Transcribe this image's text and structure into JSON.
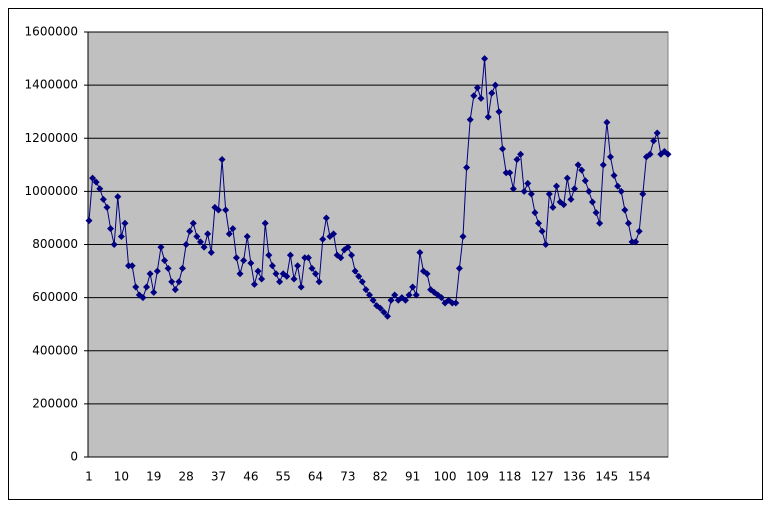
{
  "chart_data": {
    "type": "line",
    "color": "#000080",
    "plot_background": "#c0c0c0",
    "grid": true,
    "ylim": [
      0,
      1600000
    ],
    "yticks": [
      0,
      200000,
      400000,
      600000,
      800000,
      1000000,
      1200000,
      1400000,
      1600000
    ],
    "categories": [
      1,
      null,
      null,
      null,
      null,
      null,
      null,
      null,
      null,
      10,
      null,
      null,
      null,
      null,
      null,
      null,
      null,
      null,
      19,
      null,
      null,
      null,
      null,
      null,
      null,
      null,
      null,
      28,
      null,
      null,
      null,
      null,
      null,
      null,
      null,
      null,
      37,
      null,
      null,
      null,
      null,
      null,
      null,
      null,
      null,
      46,
      null,
      null,
      null,
      null,
      null,
      null,
      null,
      null,
      55,
      null,
      null,
      null,
      null,
      null,
      null,
      null,
      null,
      64,
      null,
      null,
      null,
      null,
      null,
      null,
      null,
      null,
      73,
      null,
      null,
      null,
      null,
      null,
      null,
      null,
      null,
      82,
      null,
      null,
      null,
      null,
      null,
      null,
      null,
      null,
      91,
      null,
      null,
      null,
      null,
      null,
      null,
      null,
      null,
      100,
      null,
      null,
      null,
      null,
      null,
      null,
      null,
      null,
      109,
      null,
      null,
      null,
      null,
      null,
      null,
      null,
      null,
      118,
      null,
      null,
      null,
      null,
      null,
      null,
      null,
      null,
      127,
      null,
      null,
      null,
      null,
      null,
      null,
      null,
      null,
      136,
      null,
      null,
      null,
      null,
      null,
      null,
      null,
      null,
      145,
      null,
      null,
      null,
      null,
      null,
      null,
      null,
      null,
      154,
      null,
      null,
      null,
      null,
      null,
      null,
      null,
      null
    ],
    "values": [
      890000,
      1050000,
      1035000,
      1010000,
      970000,
      940000,
      860000,
      800000,
      980000,
      830000,
      880000,
      720000,
      720000,
      640000,
      610000,
      600000,
      640000,
      690000,
      620000,
      700000,
      790000,
      740000,
      710000,
      660000,
      630000,
      660000,
      710000,
      800000,
      850000,
      880000,
      830000,
      810000,
      790000,
      840000,
      770000,
      940000,
      930000,
      1120000,
      930000,
      840000,
      860000,
      750000,
      690000,
      740000,
      830000,
      730000,
      650000,
      700000,
      670000,
      880000,
      760000,
      720000,
      690000,
      660000,
      690000,
      680000,
      760000,
      670000,
      720000,
      640000,
      750000,
      750000,
      710000,
      690000,
      660000,
      820000,
      900000,
      830000,
      840000,
      760000,
      750000,
      780000,
      790000,
      760000,
      700000,
      680000,
      660000,
      630000,
      610000,
      590000,
      570000,
      560000,
      545000,
      530000,
      590000,
      610000,
      590000,
      600000,
      590000,
      610000,
      640000,
      610000,
      770000,
      700000,
      690000,
      630000,
      620000,
      610000,
      600000,
      580000,
      590000,
      580000,
      580000,
      710000,
      830000,
      1090000,
      1270000,
      1360000,
      1390000,
      1350000,
      1500000,
      1280000,
      1370000,
      1400000,
      1300000,
      1160000,
      1070000,
      1070000,
      1010000,
      1120000,
      1140000,
      1000000,
      1030000,
      990000,
      920000,
      880000,
      850000,
      800000,
      990000,
      940000,
      1020000,
      960000,
      950000,
      1050000,
      970000,
      1010000,
      1100000,
      1080000,
      1040000,
      1000000,
      960000,
      920000,
      880000,
      1100000,
      1260000,
      1130000,
      1060000,
      1020000,
      1000000,
      930000,
      880000,
      810000,
      810000,
      850000,
      990000,
      1130000,
      1140000,
      1190000,
      1220000,
      1140000,
      1150000,
      1140000
    ]
  }
}
